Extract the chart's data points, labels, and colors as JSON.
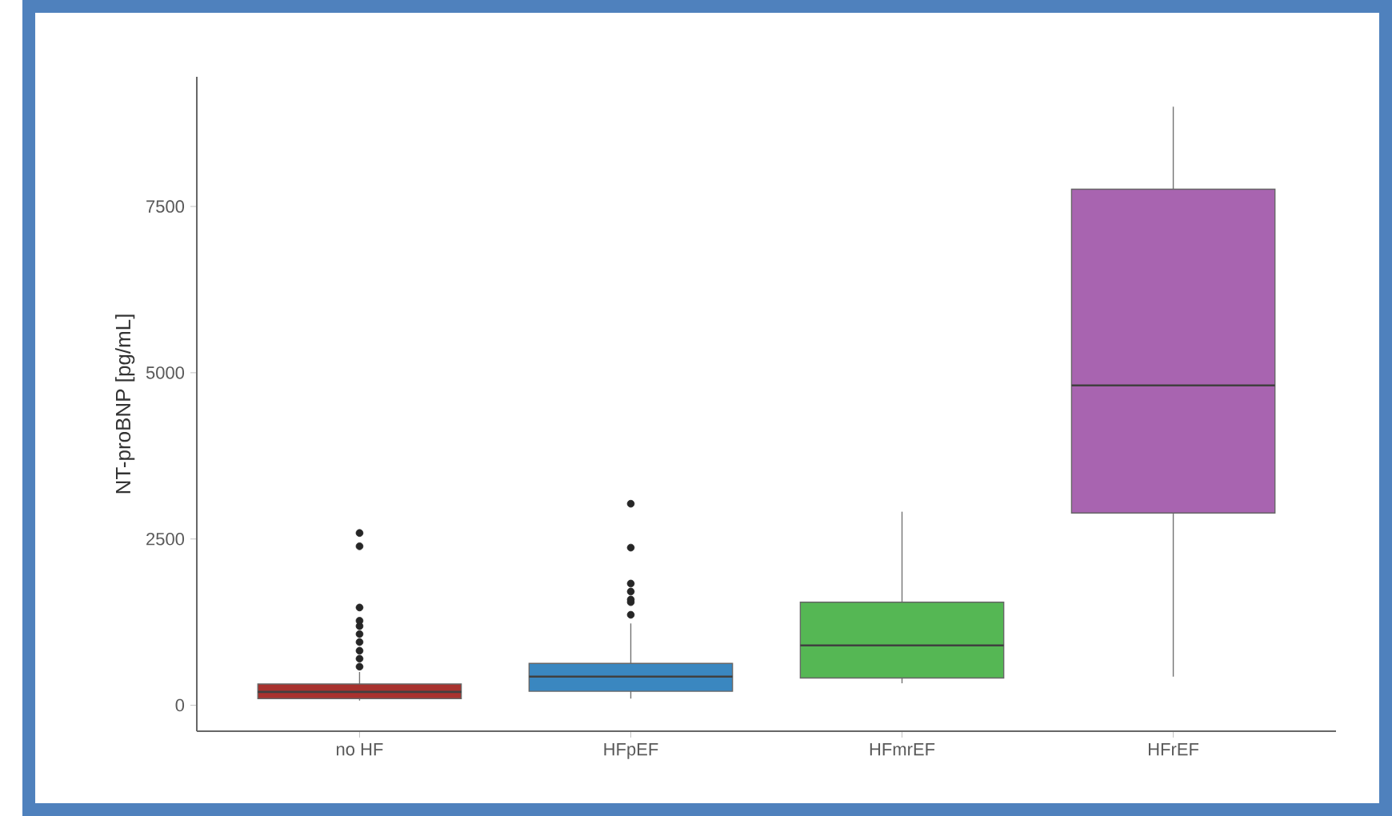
{
  "chart_data": {
    "type": "box",
    "ylabel": "NT-proBNP [pg/mL]",
    "categories": [
      "no HF",
      "HFpEF",
      "HFmrEF",
      "HFrEF"
    ],
    "colors": [
      "#a8322e",
      "#3a87c0",
      "#55b754",
      "#a864b0"
    ],
    "boxes": [
      {
        "low": 70,
        "q1": 100,
        "median": 200,
        "q3": 320,
        "high": 500,
        "outliers": [
          580,
          700,
          820,
          950,
          1070,
          1190,
          1270,
          1470,
          2390,
          2590
        ]
      },
      {
        "low": 100,
        "q1": 210,
        "median": 430,
        "q3": 630,
        "high": 1230,
        "outliers": [
          1360,
          1550,
          1590,
          1710,
          1830,
          2370,
          3030
        ]
      },
      {
        "low": 330,
        "q1": 410,
        "median": 900,
        "q3": 1550,
        "high": 2910
      },
      {
        "low": 430,
        "q1": 2890,
        "median": 4810,
        "q3": 7760,
        "high": 9000
      }
    ],
    "ylim": [
      -390,
      9450
    ],
    "yticks": [
      0,
      2500,
      5000,
      7500
    ],
    "grid": false
  }
}
